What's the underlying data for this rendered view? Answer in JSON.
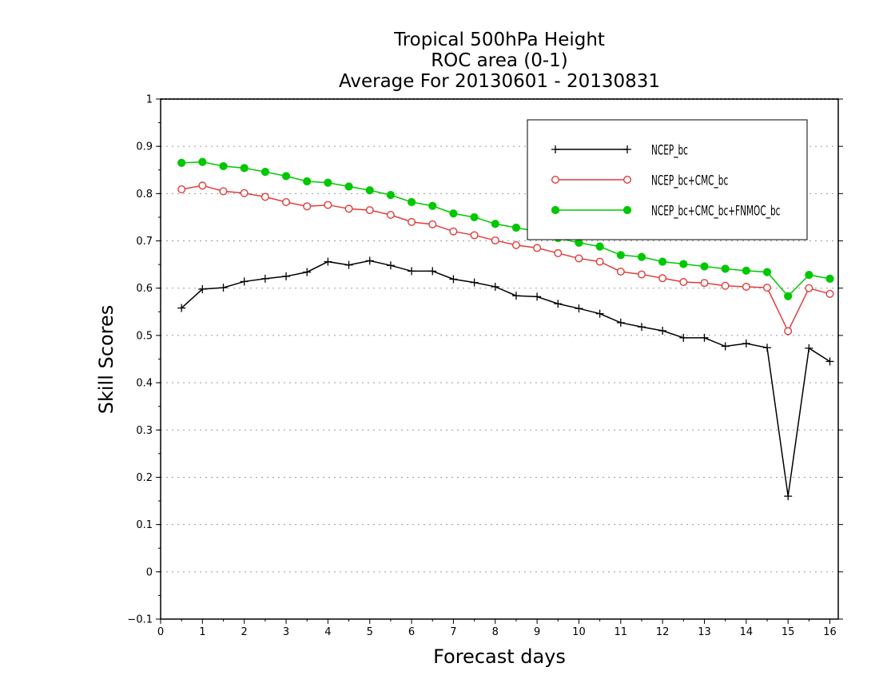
{
  "chart_data": {
    "type": "line",
    "title": [
      "Tropical 500hPa Height",
      "ROC area (0-1)",
      "Average For 20130601 - 20130831"
    ],
    "xlabel": "Forecast days",
    "ylabel": "Skill Scores",
    "xlim": [
      0,
      16.2
    ],
    "ylim": [
      -0.1,
      1
    ],
    "x_ticks": [
      0,
      1,
      2,
      3,
      4,
      5,
      6,
      7,
      8,
      9,
      10,
      11,
      12,
      13,
      14,
      15,
      16
    ],
    "y_ticks": [
      -0.1,
      0,
      0.1,
      0.2,
      0.3,
      0.4,
      0.5,
      0.6,
      0.7,
      0.8,
      0.9,
      1
    ],
    "grid": true,
    "legend_position": "top-right",
    "x": [
      0.5,
      1,
      1.5,
      2,
      2.5,
      3,
      3.5,
      4,
      4.5,
      5,
      5.5,
      6,
      6.5,
      7,
      7.5,
      8,
      8.5,
      9,
      9.5,
      10,
      10.5,
      11,
      11.5,
      12,
      12.5,
      13,
      13.5,
      14,
      14.5,
      15,
      15.5,
      16
    ],
    "series": [
      {
        "name": "NCEP_bc",
        "color": "#000000",
        "marker": "plus",
        "values": [
          0.558,
          0.598,
          0.601,
          0.614,
          0.62,
          0.625,
          0.634,
          0.656,
          0.649,
          0.658,
          0.648,
          0.636,
          0.636,
          0.619,
          0.612,
          0.603,
          0.584,
          0.582,
          0.567,
          0.557,
          0.546,
          0.527,
          0.518,
          0.51,
          0.495,
          0.495,
          0.477,
          0.483,
          0.474,
          0.16,
          0.473,
          0.445
        ]
      },
      {
        "name": "NCEP_bc+CMC_bc",
        "color": "#e03c3c",
        "marker": "open-circle",
        "values": [
          0.809,
          0.817,
          0.805,
          0.801,
          0.793,
          0.782,
          0.773,
          0.776,
          0.768,
          0.765,
          0.755,
          0.74,
          0.735,
          0.72,
          0.712,
          0.701,
          0.691,
          0.685,
          0.674,
          0.663,
          0.656,
          0.635,
          0.629,
          0.621,
          0.613,
          0.611,
          0.605,
          0.603,
          0.601,
          0.509,
          0.6,
          0.588
        ]
      },
      {
        "name": "NCEP_bc+CMC_bc+FNMOC_bc",
        "color": "#00c800",
        "marker": "filled-circle",
        "values": [
          0.865,
          0.867,
          0.858,
          0.854,
          0.846,
          0.837,
          0.826,
          0.823,
          0.815,
          0.807,
          0.797,
          0.782,
          0.774,
          0.758,
          0.75,
          0.736,
          0.728,
          0.72,
          0.706,
          0.696,
          0.688,
          0.67,
          0.666,
          0.656,
          0.651,
          0.646,
          0.641,
          0.637,
          0.634,
          0.583,
          0.628,
          0.62
        ]
      }
    ]
  }
}
